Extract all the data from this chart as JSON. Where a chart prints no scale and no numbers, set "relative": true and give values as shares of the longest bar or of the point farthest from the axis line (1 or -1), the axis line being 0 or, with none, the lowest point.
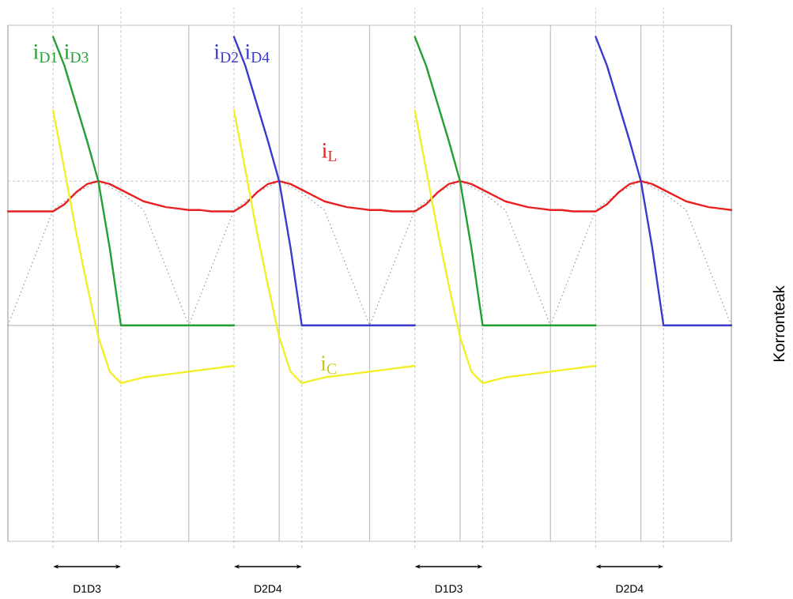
{
  "chart_data": {
    "type": "line",
    "relative": true,
    "ylabel": "Korronteak",
    "categories": [
      null,
      null,
      null,
      null,
      null,
      null,
      null,
      null,
      null,
      null,
      null,
      null,
      null,
      null,
      null,
      null,
      null,
      null,
      null,
      null,
      null,
      null,
      null,
      null,
      null,
      null,
      null,
      null,
      null,
      null,
      null,
      null,
      null,
      null,
      null,
      null,
      null,
      null,
      null,
      null,
      null,
      null,
      null,
      null,
      null,
      null,
      null,
      null,
      null,
      null,
      null,
      null,
      null,
      null,
      null,
      null,
      null,
      null,
      null,
      null,
      null,
      null,
      null,
      null,
      null
    ],
    "marker": "none",
    "grid": "x",
    "annotations": [
      "D1D3",
      "D2D4",
      "D1D3",
      "D2D4"
    ],
    "ref_lines": [
      {
        "axis": "y",
        "value": 0.5,
        "line_style": "dashed",
        "color": "#b4b4b4"
      }
    ],
    "series": [
      {
        "color": "#8c8c8c",
        "line_style": "dotted",
        "values": [
          0,
          0.1,
          0.2,
          0.3,
          0.4,
          0.43,
          0.46,
          0.48,
          0.5,
          0.48,
          0.46,
          0.43,
          0.4,
          0.3,
          0.2,
          0.1,
          0,
          0.1,
          0.2,
          0.3,
          0.4,
          0.43,
          0.46,
          0.48,
          0.5,
          0.48,
          0.46,
          0.43,
          0.4,
          0.3,
          0.2,
          0.1,
          0,
          0.1,
          0.2,
          0.3,
          0.4,
          0.43,
          0.46,
          0.48,
          0.5,
          0.48,
          0.46,
          0.43,
          0.4,
          0.3,
          0.2,
          0.1,
          0,
          0.1,
          0.2,
          0.3,
          0.4,
          0.43,
          0.46,
          0.48,
          0.5,
          0.48,
          0.46,
          0.43,
          0.4,
          0.3,
          0.2,
          0.1,
          0
        ]
      },
      {
        "name": "i$_{L}$",
        "color": "#e82020",
        "values": [
          0.395,
          0.395,
          0.395,
          0.395,
          0.395,
          0.42,
          0.46,
          0.49,
          0.5,
          0.49,
          0.47,
          0.45,
          0.43,
          0.42,
          0.41,
          0.405,
          0.4,
          0.4,
          0.395,
          0.395,
          0.395,
          0.42,
          0.46,
          0.49,
          0.5,
          0.49,
          0.47,
          0.45,
          0.43,
          0.42,
          0.41,
          0.405,
          0.4,
          0.4,
          0.395,
          0.395,
          0.395,
          0.42,
          0.46,
          0.49,
          0.5,
          0.49,
          0.47,
          0.45,
          0.43,
          0.42,
          0.41,
          0.405,
          0.4,
          0.4,
          0.395,
          0.395,
          0.395,
          0.42,
          0.46,
          0.49,
          0.5,
          0.49,
          0.47,
          0.45,
          0.43,
          0.42,
          0.41,
          0.405,
          0.4
        ]
      },
      {
        "color": "#f2ef2a",
        "values": [
          null,
          null,
          null,
          null,
          0.745,
          0.54,
          0.33,
          0.14,
          -0.04,
          -0.16,
          -0.2,
          -0.19,
          -0.18,
          -0.175,
          -0.17,
          -0.165,
          -0.16,
          -0.155,
          -0.15,
          -0.145,
          -0.14,
          null,
          null,
          null,
          null,
          null,
          null,
          null,
          null,
          null,
          null,
          null,
          null,
          null,
          null,
          null,
          null,
          null,
          null,
          null,
          null,
          null,
          null,
          null,
          null,
          null,
          null,
          null,
          null,
          null,
          null,
          null,
          null,
          null,
          null,
          null,
          null,
          null,
          null,
          null,
          null,
          null,
          null,
          null,
          null
        ]
      },
      {
        "name": "i$_{C}$",
        "color": "#f2ef2a",
        "values": [
          null,
          null,
          null,
          null,
          null,
          null,
          null,
          null,
          null,
          null,
          null,
          null,
          null,
          null,
          null,
          null,
          null,
          null,
          null,
          null,
          0.745,
          0.54,
          0.33,
          0.14,
          -0.04,
          -0.16,
          -0.2,
          -0.19,
          -0.18,
          -0.175,
          -0.17,
          -0.165,
          -0.16,
          -0.155,
          -0.15,
          -0.145,
          -0.14,
          null,
          null,
          null,
          null,
          null,
          null,
          null,
          null,
          null,
          null,
          null,
          null,
          null,
          null,
          null,
          null,
          null,
          null,
          null,
          null,
          null,
          null,
          null,
          null,
          null,
          null,
          null,
          null
        ]
      },
      {
        "color": "#f2ef2a",
        "values": [
          null,
          null,
          null,
          null,
          null,
          null,
          null,
          null,
          null,
          null,
          null,
          null,
          null,
          null,
          null,
          null,
          null,
          null,
          null,
          null,
          null,
          null,
          null,
          null,
          null,
          null,
          null,
          null,
          null,
          null,
          null,
          null,
          null,
          null,
          null,
          null,
          0.745,
          0.54,
          0.33,
          0.14,
          -0.04,
          -0.16,
          -0.2,
          -0.19,
          -0.18,
          -0.175,
          -0.17,
          -0.165,
          -0.16,
          -0.155,
          -0.15,
          -0.145,
          -0.14,
          null,
          null,
          null,
          null,
          null,
          null,
          null,
          null,
          null,
          null,
          null,
          null
        ]
      },
      {
        "name": "i$_{D1}$ i$_{D3}$",
        "color": "#22a032",
        "values": [
          null,
          null,
          null,
          null,
          1,
          0.9,
          0.77,
          0.64,
          0.5,
          0.27,
          0,
          0,
          0,
          0,
          0,
          0,
          0,
          0,
          0,
          0,
          0,
          null,
          null,
          null,
          null,
          null,
          null,
          null,
          null,
          null,
          null,
          null,
          null,
          null,
          null,
          null,
          1,
          0.9,
          0.77,
          0.64,
          0.5,
          0.27,
          0,
          0,
          0,
          0,
          0,
          0,
          0,
          0,
          0,
          0,
          0,
          null,
          null,
          null,
          null,
          null,
          null,
          null,
          null,
          null,
          null,
          null,
          null
        ]
      },
      {
        "name": "i$_{D2}$ i$_{D4}$",
        "color": "#3a3acc",
        "values": [
          null,
          null,
          null,
          null,
          null,
          null,
          null,
          null,
          null,
          null,
          null,
          null,
          null,
          null,
          null,
          null,
          null,
          null,
          null,
          null,
          1,
          0.9,
          0.77,
          0.64,
          0.5,
          0.27,
          0,
          0,
          0,
          0,
          0,
          0,
          0,
          0,
          0,
          0,
          0,
          null,
          null,
          null,
          null,
          null,
          null,
          null,
          null,
          null,
          null,
          null,
          null,
          null,
          null,
          null,
          1,
          0.9,
          0.77,
          0.64,
          0.5,
          0.27,
          0,
          0,
          0,
          0,
          0,
          0,
          0
        ]
      }
    ]
  }
}
